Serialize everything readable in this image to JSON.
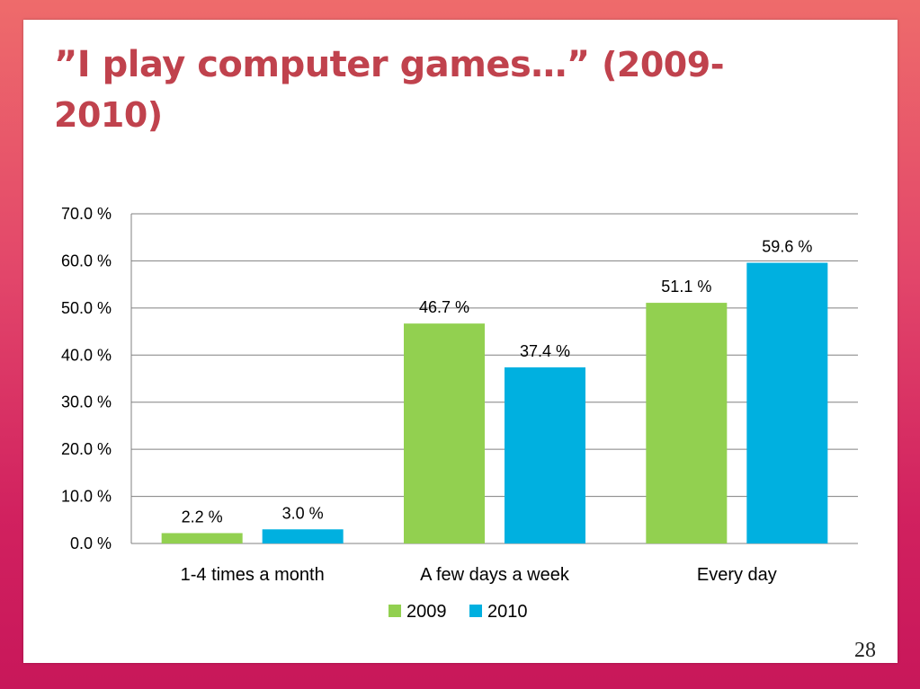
{
  "slide": {
    "title_main": "”I play computer games…”",
    "title_years": "(2009-2010)",
    "page_number": "28"
  },
  "colors": {
    "background_top": "#ee6b6b",
    "background_bottom": "#c8175a",
    "title": "#c0424d",
    "series_2009": "#92d050",
    "series_2010": "#00b0e0",
    "gridline": "#808080"
  },
  "chart_data": {
    "type": "bar",
    "title": "",
    "xlabel": "",
    "ylabel": "",
    "categories": [
      "1-4 times a month",
      "A few days a week",
      "Every day"
    ],
    "series": [
      {
        "name": "2009",
        "values": [
          2.2,
          46.7,
          51.1
        ],
        "labels": [
          "2.2 %",
          "46.7 %",
          "51.1 %"
        ],
        "color": "#92d050"
      },
      {
        "name": "2010",
        "values": [
          3.0,
          37.4,
          59.6
        ],
        "labels": [
          "3.0 %",
          "37.4 %",
          "59.6 %"
        ],
        "color": "#00b0e0"
      }
    ],
    "ylim": [
      0,
      70
    ],
    "yticks": [
      0,
      10,
      20,
      30,
      40,
      50,
      60,
      70
    ],
    "ytick_labels": [
      "0.0 %",
      "10.0 %",
      "20.0 %",
      "30.0 %",
      "40.0 %",
      "50.0 %",
      "60.0 %",
      "70.0 %"
    ],
    "grid": true,
    "legend": "bottom"
  }
}
